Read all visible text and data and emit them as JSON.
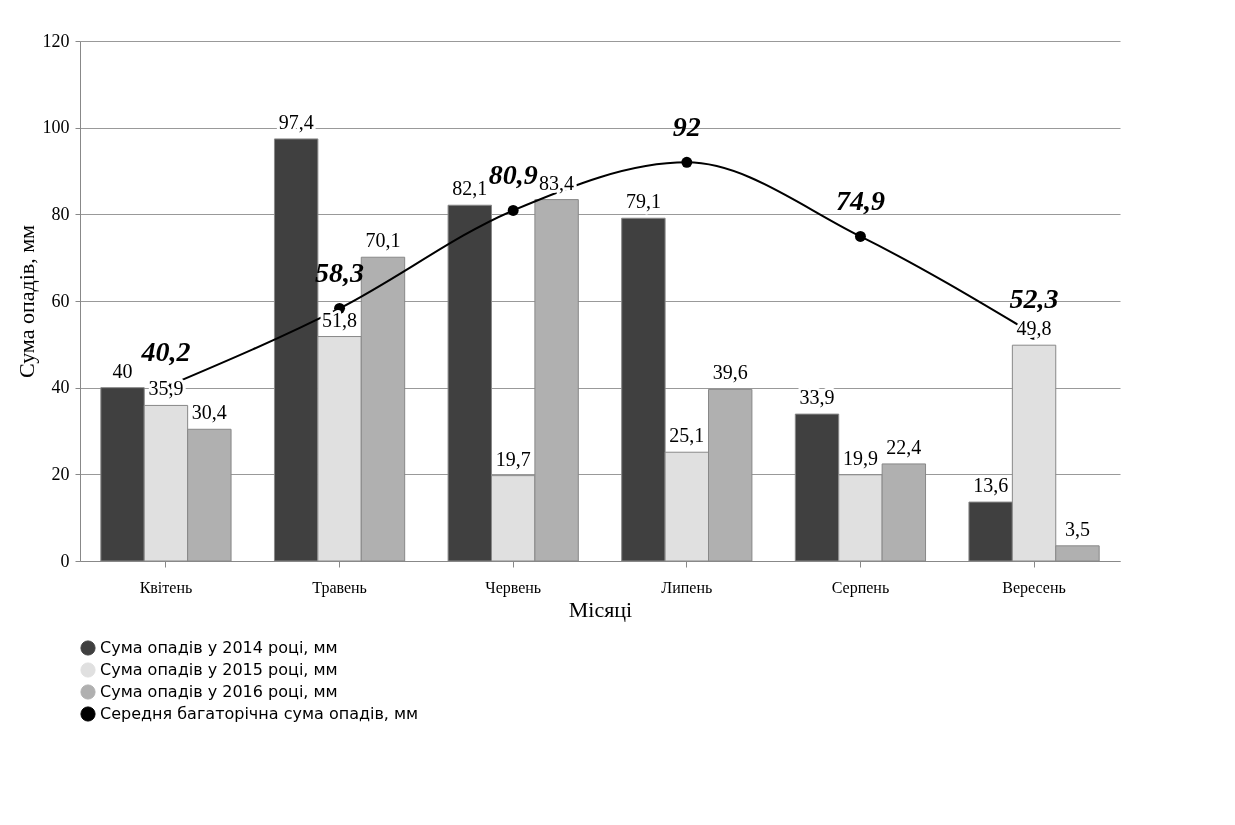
{
  "chart_data": {
    "type": "bar",
    "xlabel": "Місяці",
    "ylabel": "Сума опадів, мм",
    "categories": [
      "Квітень",
      "Травень",
      "Червень",
      "Липень",
      "Серпень",
      "Вересень"
    ],
    "series": [
      {
        "name": "Сума опадів у 2014 році, мм",
        "color": "#404040",
        "values": [
          40,
          97.4,
          82.1,
          79.1,
          33.9,
          13.6
        ],
        "value_labels": [
          "40",
          "97,4",
          "82,1",
          "79,1",
          "33,9",
          "13,6"
        ]
      },
      {
        "name": "Сума опадів у 2015 році, мм",
        "color": "#e0e0e0",
        "values": [
          35.9,
          51.8,
          19.7,
          25.1,
          19.9,
          49.8
        ],
        "value_labels": [
          "35,9",
          "51,8",
          "19,7",
          "25,1",
          "19,9",
          "49,8"
        ]
      },
      {
        "name": "Сума опадів у 2016 році, мм",
        "color": "#b0b0b0",
        "values": [
          30.4,
          70.1,
          83.4,
          39.6,
          22.4,
          3.5
        ],
        "value_labels": [
          "30,4",
          "70,1",
          "83,4",
          "39,6",
          "22,4",
          "3,5"
        ]
      },
      {
        "name": "Середня багаторічна сума опадів, мм",
        "type": "line",
        "color": "#000000",
        "marker": "circle",
        "values": [
          40.2,
          58.3,
          80.9,
          92,
          74.9,
          52.3
        ],
        "value_labels": [
          "40,2",
          "58,3",
          "80,9",
          "92",
          "74,9",
          "52,3"
        ]
      }
    ],
    "ylim": [
      0,
      120
    ],
    "yticks": [
      0,
      20,
      40,
      60,
      80,
      100,
      120
    ],
    "grid": "y",
    "legend": "bottom"
  }
}
